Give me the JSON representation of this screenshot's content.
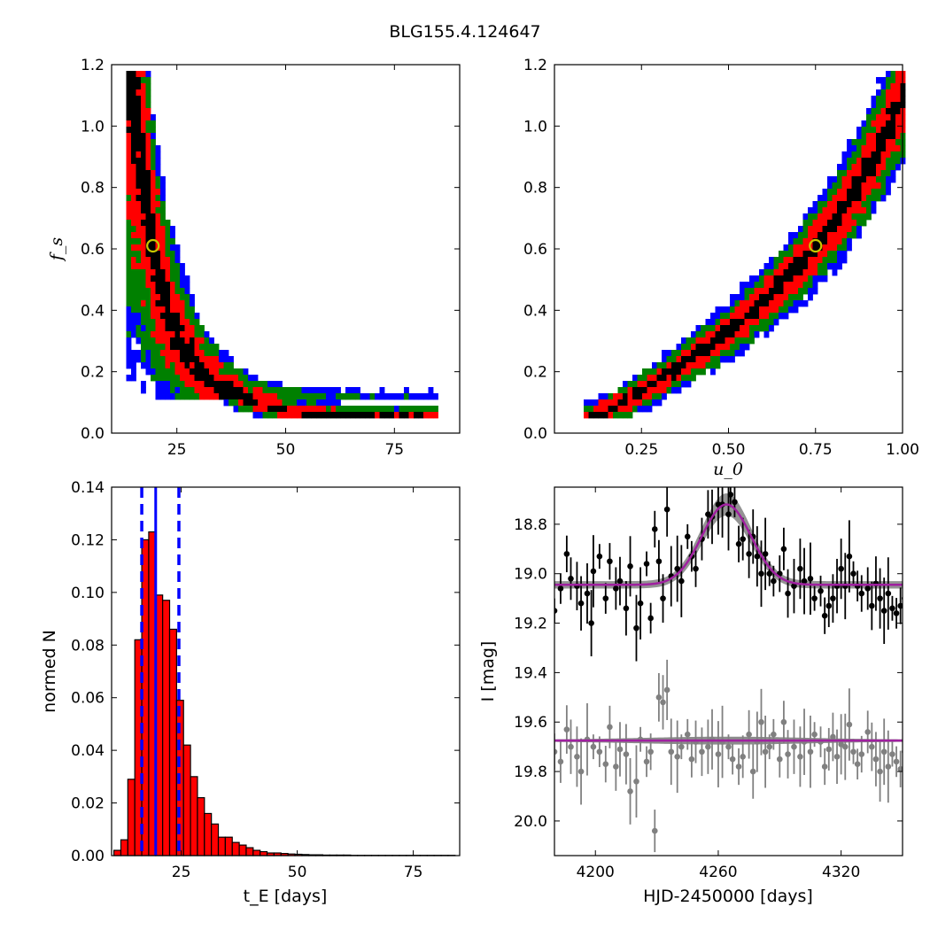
{
  "figure": {
    "title": "BLG155.4.124647"
  },
  "colors": {
    "c1": "#0000ff",
    "c2": "#008000",
    "c3": "#ff0000",
    "c4": "#000000",
    "best_fit_marker": "#c8c800",
    "hist_fill": "#ff0000",
    "hist_edge": "#000000",
    "median_line": "#0000ff",
    "event_points": "#000000",
    "baseline_points": "#808080",
    "model_curve": "#a020a0",
    "model_band": "#808080"
  },
  "chart_data": [
    {
      "id": "fs-vs-tE",
      "type": "heatmap",
      "title": "",
      "xlabel": "",
      "ylabel": "f_s",
      "xlim": [
        10,
        90
      ],
      "ylim": [
        0,
        1.2
      ],
      "xticks": [
        "25",
        "50",
        "75"
      ],
      "yticks": [
        "0.0",
        "0.2",
        "0.4",
        "0.6",
        "0.8",
        "1.0",
        "1.2"
      ],
      "best_fit": {
        "x": 19.5,
        "y": 0.61
      },
      "ridge": [
        [
          14,
          1.15
        ],
        [
          15,
          1.05
        ],
        [
          16.5,
          0.95
        ],
        [
          17.5,
          0.82
        ],
        [
          18.5,
          0.7
        ],
        [
          19.5,
          0.61
        ],
        [
          21,
          0.5
        ],
        [
          23,
          0.4
        ],
        [
          26,
          0.3
        ],
        [
          30,
          0.21
        ],
        [
          35,
          0.15
        ],
        [
          42,
          0.1
        ],
        [
          52,
          0.07
        ],
        [
          62,
          0.055
        ],
        [
          72,
          0.05
        ],
        [
          80,
          0.048
        ]
      ],
      "levels": [
        "c4",
        "c3",
        "c2",
        "c1"
      ]
    },
    {
      "id": "fs-vs-u0",
      "type": "heatmap",
      "title": "",
      "xlabel": "u_0",
      "ylabel": "",
      "xlim": [
        0,
        1.0
      ],
      "ylim": [
        0,
        1.2
      ],
      "xticks": [
        "0.25",
        "0.50",
        "0.75",
        "1.00"
      ],
      "yticks": [
        "0.0",
        "0.2",
        "0.4",
        "0.6",
        "0.8",
        "1.0",
        "1.2"
      ],
      "best_fit": {
        "x": 0.75,
        "y": 0.61
      },
      "ridge": [
        [
          0.1,
          0.05
        ],
        [
          0.2,
          0.1
        ],
        [
          0.3,
          0.17
        ],
        [
          0.4,
          0.25
        ],
        [
          0.5,
          0.33
        ],
        [
          0.6,
          0.43
        ],
        [
          0.7,
          0.54
        ],
        [
          0.75,
          0.61
        ],
        [
          0.8,
          0.68
        ],
        [
          0.88,
          0.82
        ],
        [
          0.95,
          0.97
        ],
        [
          1.0,
          1.1
        ]
      ],
      "levels": [
        "c4",
        "c3",
        "c2",
        "c1"
      ]
    },
    {
      "id": "tE-histogram",
      "type": "bar",
      "title": "",
      "xlabel": "t_E [days]",
      "ylabel": "normed N",
      "xlim": [
        10,
        85
      ],
      "ylim": [
        0,
        0.14
      ],
      "xticks": [
        "25",
        "50",
        "75"
      ],
      "yticks": [
        "0.00",
        "0.02",
        "0.04",
        "0.06",
        "0.08",
        "0.10",
        "0.12",
        "0.14"
      ],
      "bin_start": 10.5,
      "bin_width": 1.5,
      "values": [
        0.002,
        0.006,
        0.029,
        0.082,
        0.12,
        0.123,
        0.099,
        0.097,
        0.086,
        0.059,
        0.042,
        0.03,
        0.022,
        0.016,
        0.012,
        0.007,
        0.007,
        0.005,
        0.004,
        0.003,
        0.002,
        0.0015,
        0.001,
        0.001,
        0.0008,
        0.0006,
        0.0005,
        0.0004,
        0.0003,
        0.0003,
        0.0002,
        0.0002,
        0.0002,
        0.0002,
        0.0001,
        0.0001,
        0.0001,
        0.0001,
        0.0001,
        0.0001,
        0.0001,
        0.0001,
        0.0001,
        0.0001,
        0.0001,
        0.0001,
        0.0001,
        0.0001,
        0.0001,
        0.0001
      ],
      "median": 19.5,
      "percentiles": [
        16.5,
        24.5
      ]
    },
    {
      "id": "light-curve",
      "type": "scatter",
      "title": "",
      "xlabel": "HJD-2450000 [days]",
      "ylabel": "I [mag]",
      "xlim": [
        4180,
        4350
      ],
      "ylim": [
        20.14,
        18.65
      ],
      "y_inverted": true,
      "xticks": [
        "4200",
        "4260",
        "4320"
      ],
      "yticks": [
        "18.8",
        "19.0",
        "19.2",
        "19.4",
        "19.6",
        "19.8",
        "20.0"
      ],
      "series": [
        {
          "color": "event_points",
          "points": [
            [
              4180,
              19.15
            ],
            [
              4183,
              19.06
            ],
            [
              4186,
              18.92
            ],
            [
              4188,
              19.02
            ],
            [
              4191,
              19.05
            ],
            [
              4193,
              19.12
            ],
            [
              4196,
              19.08
            ],
            [
              4198,
              19.2
            ],
            [
              4199,
              18.99
            ],
            [
              4202,
              18.93
            ],
            [
              4205,
              19.1
            ],
            [
              4207,
              18.95
            ],
            [
              4210,
              19.06
            ],
            [
              4212,
              19.03
            ],
            [
              4215,
              19.14
            ],
            [
              4217,
              18.97
            ],
            [
              4220,
              19.22
            ],
            [
              4222,
              19.12
            ],
            [
              4225,
              18.96
            ],
            [
              4227,
              19.18
            ],
            [
              4229,
              18.82
            ],
            [
              4231,
              18.95
            ],
            [
              4233,
              19.1
            ],
            [
              4235,
              18.74
            ],
            [
              4237,
              19.01
            ],
            [
              4240,
              18.98
            ],
            [
              4242,
              19.03
            ],
            [
              4245,
              18.85
            ],
            [
              4247,
              18.93
            ],
            [
              4249,
              18.98
            ],
            [
              4252,
              18.86
            ],
            [
              4255,
              18.76
            ],
            [
              4257,
              18.77
            ],
            [
              4260,
              18.72
            ],
            [
              4262,
              18.72
            ],
            [
              4265,
              18.76
            ],
            [
              4266,
              18.68
            ],
            [
              4268,
              18.71
            ],
            [
              4270,
              18.88
            ],
            [
              4272,
              18.86
            ],
            [
              4275,
              18.92
            ],
            [
              4277,
              18.85
            ],
            [
              4279,
              18.93
            ],
            [
              4281,
              19.0
            ],
            [
              4283,
              18.92
            ],
            [
              4285,
              19.0
            ],
            [
              4287,
              19.03
            ],
            [
              4290,
              19.0
            ],
            [
              4292,
              18.9
            ],
            [
              4294,
              19.08
            ],
            [
              4297,
              19.05
            ],
            [
              4300,
              18.98
            ],
            [
              4302,
              19.03
            ],
            [
              4305,
              19.02
            ],
            [
              4307,
              19.1
            ],
            [
              4310,
              19.07
            ],
            [
              4312,
              19.17
            ],
            [
              4314,
              19.13
            ],
            [
              4316,
              19.1
            ],
            [
              4318,
              19.05
            ],
            [
              4320,
              18.98
            ],
            [
              4322,
              19.05
            ],
            [
              4324,
              18.93
            ],
            [
              4326,
              19.0
            ],
            [
              4328,
              19.05
            ],
            [
              4330,
              19.08
            ],
            [
              4333,
              19.06
            ],
            [
              4335,
              19.13
            ],
            [
              4337,
              19.04
            ],
            [
              4339,
              19.1
            ],
            [
              4341,
              19.15
            ],
            [
              4343,
              19.08
            ],
            [
              4345,
              19.14
            ],
            [
              4347,
              19.16
            ],
            [
              4349,
              19.13
            ],
            [
              4351,
              19.1
            ]
          ]
        },
        {
          "color": "baseline_points",
          "points": [
            [
              4180,
              19.72
            ],
            [
              4183,
              19.76
            ],
            [
              4186,
              19.63
            ],
            [
              4188,
              19.7
            ],
            [
              4191,
              19.74
            ],
            [
              4193,
              19.8
            ],
            [
              4196,
              19.67
            ],
            [
              4199,
              19.7
            ],
            [
              4202,
              19.72
            ],
            [
              4205,
              19.77
            ],
            [
              4207,
              19.62
            ],
            [
              4210,
              19.78
            ],
            [
              4212,
              19.71
            ],
            [
              4215,
              19.73
            ],
            [
              4217,
              19.88
            ],
            [
              4220,
              19.84
            ],
            [
              4222,
              19.67
            ],
            [
              4225,
              19.76
            ],
            [
              4227,
              19.72
            ],
            [
              4229,
              20.04
            ],
            [
              4231,
              19.5
            ],
            [
              4233,
              19.52
            ],
            [
              4235,
              19.47
            ],
            [
              4237,
              19.72
            ],
            [
              4240,
              19.74
            ],
            [
              4242,
              19.7
            ],
            [
              4245,
              19.65
            ],
            [
              4247,
              19.75
            ],
            [
              4249,
              19.68
            ],
            [
              4252,
              19.72
            ],
            [
              4255,
              19.7
            ],
            [
              4257,
              19.67
            ],
            [
              4260,
              19.73
            ],
            [
              4262,
              19.68
            ],
            [
              4265,
              19.7
            ],
            [
              4267,
              19.75
            ],
            [
              4270,
              19.78
            ],
            [
              4272,
              19.74
            ],
            [
              4275,
              19.65
            ],
            [
              4277,
              19.8
            ],
            [
              4279,
              19.68
            ],
            [
              4281,
              19.6
            ],
            [
              4283,
              19.72
            ],
            [
              4285,
              19.7
            ],
            [
              4287,
              19.65
            ],
            [
              4290,
              19.75
            ],
            [
              4292,
              19.6
            ],
            [
              4294,
              19.73
            ],
            [
              4297,
              19.7
            ],
            [
              4300,
              19.74
            ],
            [
              4302,
              19.68
            ],
            [
              4305,
              19.72
            ],
            [
              4307,
              19.65
            ],
            [
              4310,
              19.68
            ],
            [
              4312,
              19.78
            ],
            [
              4314,
              19.71
            ],
            [
              4316,
              19.66
            ],
            [
              4318,
              19.74
            ],
            [
              4320,
              19.69
            ],
            [
              4322,
              19.7
            ],
            [
              4324,
              19.61
            ],
            [
              4326,
              19.72
            ],
            [
              4328,
              19.77
            ],
            [
              4330,
              19.73
            ],
            [
              4333,
              19.64
            ],
            [
              4335,
              19.7
            ],
            [
              4337,
              19.75
            ],
            [
              4339,
              19.8
            ],
            [
              4341,
              19.72
            ],
            [
              4343,
              19.78
            ],
            [
              4345,
              19.73
            ],
            [
              4347,
              19.76
            ],
            [
              4349,
              19.79
            ],
            [
              4351,
              19.72
            ]
          ]
        }
      ],
      "model": {
        "baseline_event": 19.045,
        "peak_time": 4264,
        "peak_mag": 18.72,
        "width_days": 12,
        "baseline_flat": 19.675
      }
    }
  ]
}
